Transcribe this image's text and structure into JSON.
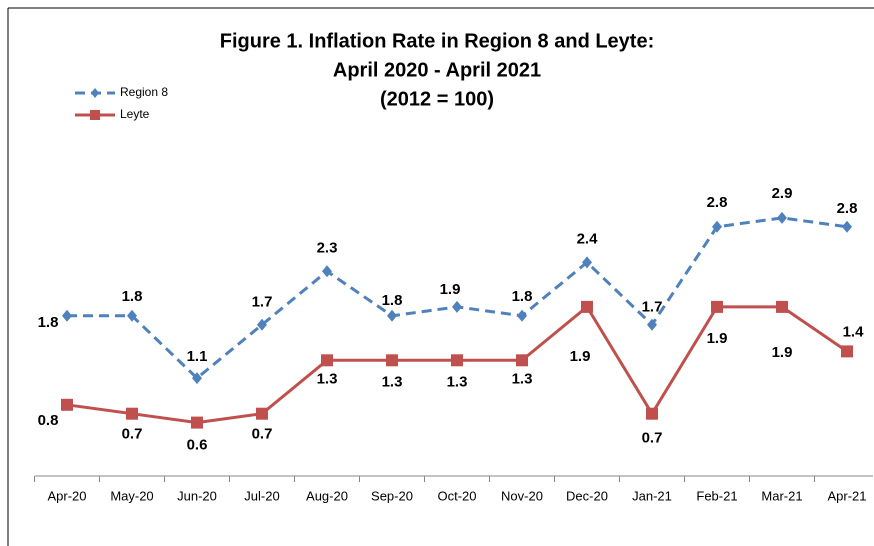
{
  "chart_data": {
    "type": "line",
    "title": [
      "Figure 1. Inflation Rate in Region 8 and Leyte:",
      "April 2020 - April 2021",
      "(2012 = 100)"
    ],
    "categories": [
      "Apr-20",
      "May-20",
      "Jun-20",
      "Jul-20",
      "Aug-20",
      "Sep-20",
      "Oct-20",
      "Nov-20",
      "Dec-20",
      "Jan-21",
      "Feb-21",
      "Mar-21",
      "Apr-21"
    ],
    "series": [
      {
        "name": "Region 8",
        "color": "#4f81bd",
        "values": [
          1.8,
          1.8,
          1.1,
          1.7,
          2.3,
          1.8,
          1.9,
          1.8,
          2.4,
          1.7,
          2.8,
          2.9,
          2.8
        ]
      },
      {
        "name": "Leyte",
        "color": "#c0504d",
        "values": [
          0.8,
          0.7,
          0.6,
          0.7,
          1.3,
          1.3,
          1.3,
          1.3,
          1.9,
          0.7,
          1.9,
          1.9,
          1.4
        ]
      }
    ],
    "legend": "top-left"
  }
}
